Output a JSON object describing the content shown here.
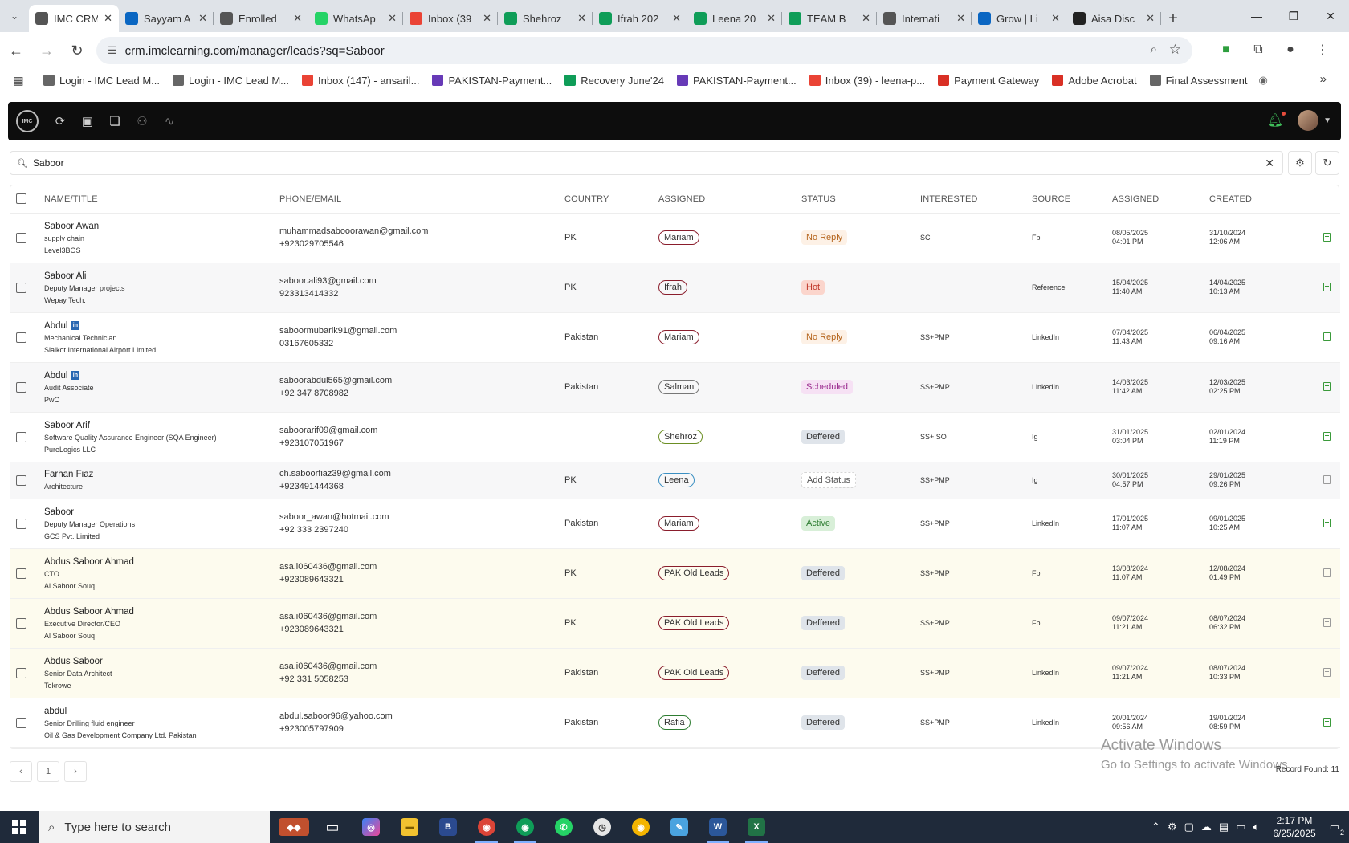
{
  "browser": {
    "tabs": [
      {
        "title": "IMC CRM",
        "icon_color": "#555555",
        "active": true
      },
      {
        "title": "Sayyam A",
        "icon_color": "#0a66c2"
      },
      {
        "title": "Enrolled",
        "icon_color": "#555555"
      },
      {
        "title": "WhatsAp",
        "icon_color": "#25d366"
      },
      {
        "title": "Inbox (39",
        "icon_color": "#ea4335"
      },
      {
        "title": "Shehroz",
        "icon_color": "#0f9d58"
      },
      {
        "title": "Ifrah 202",
        "icon_color": "#0f9d58"
      },
      {
        "title": "Leena 20",
        "icon_color": "#0f9d58"
      },
      {
        "title": "TEAM B",
        "icon_color": "#0f9d58"
      },
      {
        "title": "Internati",
        "icon_color": "#555555"
      },
      {
        "title": "Grow | Li",
        "icon_color": "#0a66c2"
      },
      {
        "title": "Aisa Disc",
        "icon_color": "#222222"
      }
    ],
    "url": "crm.imclearning.com/manager/leads?sq=Saboor",
    "bookmarks": [
      {
        "label": "Login - IMC Lead M...",
        "color": "#666666"
      },
      {
        "label": "Login - IMC Lead M...",
        "color": "#666666"
      },
      {
        "label": "Inbox (147) - ansaril...",
        "color": "#ea4335"
      },
      {
        "label": "PAKISTAN-Payment...",
        "color": "#673ab7"
      },
      {
        "label": "Recovery June'24",
        "color": "#0f9d58"
      },
      {
        "label": "PAKISTAN-Payment...",
        "color": "#673ab7"
      },
      {
        "label": "Inbox (39) - leena-p...",
        "color": "#ea4335"
      },
      {
        "label": "Payment Gateway",
        "color": "#d93025"
      },
      {
        "label": "Adobe Acrobat",
        "color": "#d93025"
      },
      {
        "label": "Final Assessment",
        "color": "#666666"
      }
    ]
  },
  "app": {
    "logo_text": "IMC",
    "search": {
      "value": "Saboor"
    },
    "columns": [
      "NAME/TITLE",
      "PHONE/EMAIL",
      "COUNTRY",
      "ASSIGNED",
      "STATUS",
      "INTERESTED",
      "SOURCE",
      "ASSIGNED",
      "CREATED"
    ],
    "rows": [
      {
        "name": "Saboor Awan",
        "linkedin": false,
        "title": "supply chain",
        "company": "Level3BOS",
        "email": "muhammadsabooorawan@gmail.com",
        "phone": "+923029705546",
        "country": "PK",
        "assigned": "Mariam",
        "assigned_color": "#8a1d2c",
        "status": "No Reply",
        "status_bg": "#fdf1e6",
        "status_fg": "#b5651d",
        "interested": "SC",
        "source": "Fb",
        "assigned_date": "08/05/2025",
        "assigned_time": "04:01 PM",
        "created_date": "31/10/2024",
        "created_time": "12:06 AM",
        "doc": "green",
        "style": "normal"
      },
      {
        "name": "Saboor Ali",
        "linkedin": false,
        "title": "Deputy Manager projects",
        "company": "Wepay Tech.",
        "email": "saboor.ali93@gmail.com",
        "phone": "923313414332",
        "country": "PK",
        "assigned": "Ifrah",
        "assigned_color": "#8a1d2c",
        "status": "Hot",
        "status_bg": "#fbd5cc",
        "status_fg": "#c0392b",
        "interested": "",
        "source": "Reference",
        "assigned_date": "15/04/2025",
        "assigned_time": "11:40 AM",
        "created_date": "14/04/2025",
        "created_time": "10:13 AM",
        "doc": "green",
        "style": "normal"
      },
      {
        "name": "Abdul",
        "linkedin": true,
        "title": "Mechanical Technician",
        "company": "Sialkot International Airport Limited",
        "email": "saboormubarik91@gmail.com",
        "phone": "03167605332",
        "country": "Pakistan",
        "assigned": "Mariam",
        "assigned_color": "#8a1d2c",
        "status": "No Reply",
        "status_bg": "#fdf1e6",
        "status_fg": "#b5651d",
        "interested": "SS+PMP",
        "source": "LinkedIn",
        "assigned_date": "07/04/2025",
        "assigned_time": "11:43 AM",
        "created_date": "06/04/2025",
        "created_time": "09:16 AM",
        "doc": "green",
        "style": "normal"
      },
      {
        "name": "Abdul",
        "linkedin": true,
        "title": "Audit Associate",
        "company": "PwC",
        "email": "saboorabdul565@gmail.com",
        "phone": "+92 347 8708982",
        "country": "Pakistan",
        "assigned": "Salman",
        "assigned_color": "#777777",
        "status": "Scheduled",
        "status_bg": "#f6e1f4",
        "status_fg": "#9b2c8f",
        "interested": "SS+PMP",
        "source": "LinkedIn",
        "assigned_date": "14/03/2025",
        "assigned_time": "11:42 AM",
        "created_date": "12/03/2025",
        "created_time": "02:25 PM",
        "doc": "green",
        "style": "normal"
      },
      {
        "name": "Saboor Arif",
        "linkedin": false,
        "title": "Software Quality Assurance Engineer (SQA Engineer)",
        "company": "PureLogics LLC",
        "email": "saboorarif09@gmail.com",
        "phone": "+923107051967",
        "country": "",
        "assigned": "Shehroz",
        "assigned_color": "#6b8e23",
        "status": "Deffered",
        "status_bg": "#dfe4ea",
        "status_fg": "#333333",
        "interested": "SS+ISO",
        "source": "Ig",
        "assigned_date": "31/01/2025",
        "assigned_time": "03:04 PM",
        "created_date": "02/01/2024",
        "created_time": "11:19 PM",
        "doc": "green",
        "style": "normal"
      },
      {
        "name": "Farhan Fiaz",
        "linkedin": false,
        "title": "Architecture",
        "company": "",
        "email": "ch.saboorfiaz39@gmail.com",
        "phone": "+923491444368",
        "country": "PK",
        "assigned": "Leena",
        "assigned_color": "#3a8fc2",
        "status": "Add Status",
        "status_bg": "#ffffff",
        "status_fg": "#555555",
        "status_border": "#d6d6d6",
        "interested": "SS+PMP",
        "source": "Ig",
        "assigned_date": "30/01/2025",
        "assigned_time": "04:57 PM",
        "created_date": "29/01/2025",
        "created_time": "09:26 PM",
        "doc": "grey",
        "style": "short"
      },
      {
        "name": "Saboor",
        "linkedin": false,
        "title": "Deputy Manager Operations",
        "company": "GCS Pvt. Limited",
        "email": "saboor_awan@hotmail.com",
        "phone": "+92 333 2397240",
        "country": "Pakistan",
        "assigned": "Mariam",
        "assigned_color": "#8a1d2c",
        "status": "Active",
        "status_bg": "#d8efd8",
        "status_fg": "#2e7d32",
        "interested": "SS+PMP",
        "source": "LinkedIn",
        "assigned_date": "17/01/2025",
        "assigned_time": "11:07 AM",
        "created_date": "09/01/2025",
        "created_time": "10:25 AM",
        "doc": "green",
        "style": "normal"
      },
      {
        "name": "Abdus Saboor Ahmad",
        "linkedin": false,
        "title": "CTO",
        "company": "Al Saboor Souq",
        "email": "asa.i060436@gmail.com",
        "phone": "+923089643321",
        "country": "PK",
        "assigned": "PAK Old Leads",
        "assigned_color": "#8a1d2c",
        "status": "Deffered",
        "status_bg": "#dfe4ea",
        "status_fg": "#333333",
        "interested": "SS+PMP",
        "source": "Fb",
        "assigned_date": "13/08/2024",
        "assigned_time": "11:07 AM",
        "created_date": "12/08/2024",
        "created_time": "01:49 PM",
        "doc": "grey",
        "style": "old"
      },
      {
        "name": "Abdus Saboor Ahmad",
        "linkedin": false,
        "title": "Executive Director/CEO",
        "company": "Al Saboor Souq",
        "email": "asa.i060436@gmail.com",
        "phone": "+923089643321",
        "country": "PK",
        "assigned": "PAK Old Leads",
        "assigned_color": "#8a1d2c",
        "status": "Deffered",
        "status_bg": "#dfe4ea",
        "status_fg": "#333333",
        "interested": "SS+PMP",
        "source": "Fb",
        "assigned_date": "09/07/2024",
        "assigned_time": "11:21 AM",
        "created_date": "08/07/2024",
        "created_time": "06:32 PM",
        "doc": "grey",
        "style": "old"
      },
      {
        "name": "Abdus Saboor",
        "linkedin": false,
        "title": "Senior Data Architect",
        "company": "Tekrowe",
        "email": "asa.i060436@gmail.com",
        "phone": "+92 331 5058253",
        "country": "Pakistan",
        "assigned": "PAK Old Leads",
        "assigned_color": "#8a1d2c",
        "status": "Deffered",
        "status_bg": "#dfe4ea",
        "status_fg": "#333333",
        "interested": "SS+PMP",
        "source": "LinkedIn",
        "assigned_date": "09/07/2024",
        "assigned_time": "11:21 AM",
        "created_date": "08/07/2024",
        "created_time": "10:33 PM",
        "doc": "grey",
        "style": "old"
      },
      {
        "name": "abdul",
        "linkedin": false,
        "title": "Senior Drilling fluid engineer",
        "company": "Oil & Gas Development Company Ltd. Pakistan",
        "email": "abdul.saboor96@yahoo.com",
        "phone": "+923005797909",
        "country": "Pakistan",
        "assigned": "Rafia",
        "assigned_color": "#2e7d32",
        "status": "Deffered",
        "status_bg": "#dfe4ea",
        "status_fg": "#333333",
        "interested": "SS+PMP",
        "source": "LinkedIn",
        "assigned_date": "20/01/2024",
        "assigned_time": "09:56 AM",
        "created_date": "19/01/2024",
        "created_time": "08:59 PM",
        "doc": "green",
        "style": "normal"
      }
    ],
    "pager": {
      "prev": "‹",
      "page": "1",
      "next": "›"
    },
    "record_found": "Record Found: 11"
  },
  "watermark": {
    "line1": "Activate Windows",
    "line2": "Go to Settings to activate Windows."
  },
  "taskbar": {
    "search_placeholder": "Type here to search",
    "time": "2:17 PM",
    "date": "6/25/2025",
    "notification_count": "2"
  }
}
